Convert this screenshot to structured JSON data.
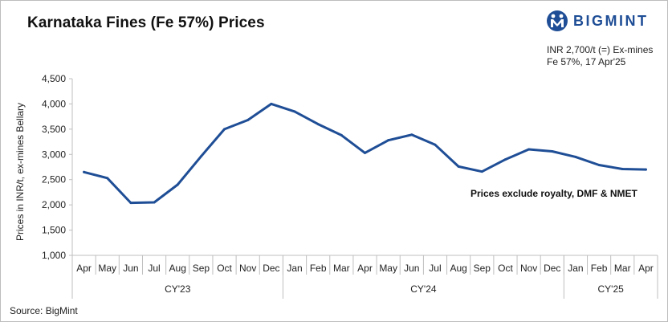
{
  "title": "Karnataka Fines (Fe 57%) Prices",
  "logo": {
    "text": "BIGMINT",
    "icon": "bigmint-logo-icon"
  },
  "note": {
    "line1": "INR 2,700/t (=) Ex-mines",
    "line2": "Fe 57%, 17 Apr'25"
  },
  "source": "Source: BigMint",
  "colors": {
    "series": "#1f4e96",
    "axis": "#bfbfbf",
    "logo": "#1f4e96"
  },
  "chart_data": {
    "type": "line",
    "title": "Karnataka Fines (Fe 57%) Prices",
    "xlabel": "",
    "ylabel": "Prices in INR/t, ex-mines Bellary",
    "ylim": [
      1000,
      4500
    ],
    "yticks": [
      "1,000",
      "1,500",
      "2,000",
      "2,500",
      "3,000",
      "3,500",
      "4,000",
      "4,500"
    ],
    "grid": false,
    "categories": [
      "Apr",
      "May",
      "Jun",
      "Jul",
      "Aug",
      "Sep",
      "Oct",
      "Nov",
      "Dec",
      "Jan",
      "Feb",
      "Mar",
      "Apr",
      "May",
      "Jun",
      "Jul",
      "Aug",
      "Sep",
      "Oct",
      "Nov",
      "Dec",
      "Jan",
      "Feb",
      "Mar",
      "Apr"
    ],
    "groups": [
      {
        "label": "CY'23",
        "count": 9
      },
      {
        "label": "CY'24",
        "count": 12
      },
      {
        "label": "CY'25",
        "count": 4
      }
    ],
    "series": [
      {
        "values": [
          2650,
          2530,
          2040,
          2050,
          2400,
          2960,
          3500,
          3680,
          4000,
          3850,
          3600,
          3380,
          3030,
          3280,
          3390,
          3190,
          2760,
          2660,
          2900,
          3100,
          3060,
          2950,
          2790,
          2710,
          2700
        ]
      }
    ],
    "annotation": "Prices exclude royalty, DMF & NMET"
  }
}
